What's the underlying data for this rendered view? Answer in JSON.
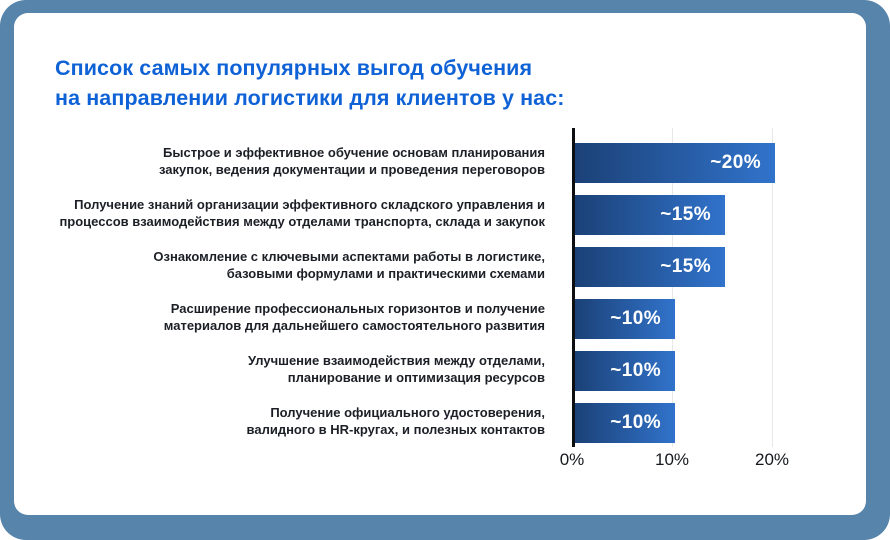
{
  "frame": {
    "background_color": "#5684ab",
    "card_color": "#ffffff"
  },
  "title": {
    "lines": [
      "Список самых популярных выгод обучения",
      "на направлении логистики для клиентов у нас:"
    ],
    "color": "#0f62d6"
  },
  "chart_data": {
    "type": "bar",
    "orientation": "horizontal",
    "title": "Список самых популярных выгод обучения на направлении логистики для клиентов у нас:",
    "categories": [
      "Быстрое и эффективное обучение основам планирования закупок, ведения документации и проведения переговоров",
      "Получение знаний организации эффективного складского управления и процессов взаимодействия между отделами транспорта, склада и закупок",
      "Ознакомление с ключевыми аспектами работы в логистике, базовыми формулами и практическими схемами",
      "Расширение профессиональных горизонтов и получение материалов для дальнейшего самостоятельного развития",
      "Улучшение взаимодействия между отделами, планирование и оптимизация ресурсов",
      "Получение официального удостоверения, валидного в HR-кругах, и полезных контактов"
    ],
    "category_lines": [
      [
        "Быстрое и эффективное обучение основам планирования",
        "закупок, ведения документации и проведения переговоров"
      ],
      [
        "Получение знаний организации эффективного складского управления и",
        "процессов взаимодействия между отделами транспорта, склада и закупок"
      ],
      [
        "Ознакомление с ключевыми аспектами работы в логистике,",
        "базовыми формулами и практическими схемами"
      ],
      [
        "Расширение профессиональных горизонтов и получение",
        "материалов для дальнейшего самостоятельного развития"
      ],
      [
        "Улучшение взаимодействия между отделами,",
        "планирование и оптимизация ресурсов"
      ],
      [
        "Получение официального удостоверения,",
        "валидного в HR-кругах, и полезных контактов"
      ]
    ],
    "values": [
      20,
      15,
      15,
      10,
      10,
      10
    ],
    "value_labels": [
      "~20%",
      "~15%",
      "~15%",
      "~10%",
      "~10%",
      "~10%"
    ],
    "x_ticks": [
      "0%",
      "10%",
      "20%"
    ],
    "x_tick_values": [
      0,
      10,
      20
    ],
    "grid_values": [
      10,
      20
    ],
    "xlim": [
      0,
      25
    ],
    "xlabel": "",
    "ylabel": "",
    "legend": "none",
    "grid": "vertical gridlines at 10% and 20%",
    "bar_gradient": [
      "#1b4177",
      "#3173cb"
    ],
    "axis_color": "#0c0e12",
    "gridline_color": "#e8e8e8"
  }
}
